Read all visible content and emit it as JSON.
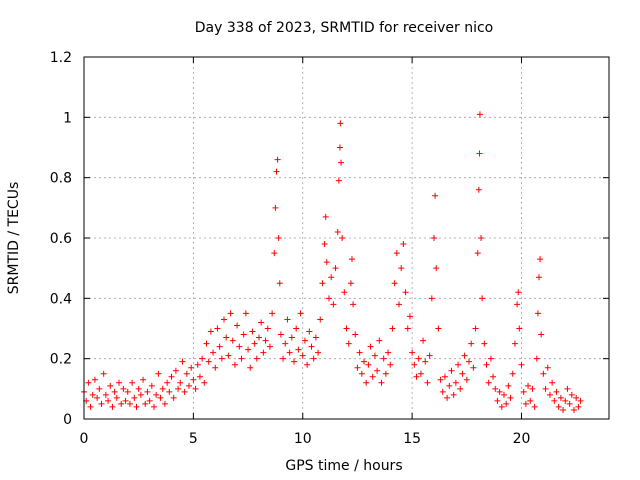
{
  "chart_data": {
    "type": "scatter",
    "title": "Day 338 of 2023, SRMTID for receiver nico",
    "xlabel": "GPS time / hours",
    "ylabel": "SRMTID / TECUs",
    "xlim": [
      0,
      24
    ],
    "ylim": [
      0,
      1.2
    ],
    "x_ticks": [
      0,
      5,
      10,
      15,
      20
    ],
    "y_ticks": [
      0,
      0.2,
      0.4,
      0.6,
      0.8,
      1,
      1.2
    ],
    "x_tick_labels": [
      "0",
      "5",
      "10",
      "15",
      "20"
    ],
    "y_tick_labels": [
      "0",
      "0.2",
      "0.4",
      "0.6",
      "0.8",
      "1",
      "1.2"
    ],
    "grid": true,
    "marker": "+",
    "series": [
      {
        "name": "SRMTID",
        "color": "#ff0000",
        "note": "dense scatter of estimated points from ~0 to ~22.7 h",
        "points": [
          [
            0.0,
            0.09
          ],
          [
            0.1,
            0.06
          ],
          [
            0.2,
            0.12
          ],
          [
            0.3,
            0.04
          ],
          [
            0.4,
            0.08
          ],
          [
            0.5,
            0.13
          ],
          [
            0.6,
            0.07
          ],
          [
            0.7,
            0.1
          ],
          [
            0.8,
            0.05
          ],
          [
            0.9,
            0.15
          ],
          [
            1.0,
            0.08
          ],
          [
            1.1,
            0.06
          ],
          [
            1.2,
            0.11
          ],
          [
            1.3,
            0.04
          ],
          [
            1.4,
            0.09
          ],
          [
            1.5,
            0.07
          ],
          [
            1.6,
            0.12
          ],
          [
            1.7,
            0.05
          ],
          [
            1.8,
            0.1
          ],
          [
            1.9,
            0.06
          ],
          [
            2.0,
            0.09
          ],
          [
            2.1,
            0.05
          ],
          [
            2.2,
            0.12
          ],
          [
            2.3,
            0.07
          ],
          [
            2.4,
            0.04
          ],
          [
            2.5,
            0.1
          ],
          [
            2.6,
            0.08
          ],
          [
            2.7,
            0.13
          ],
          [
            2.8,
            0.05
          ],
          [
            2.9,
            0.09
          ],
          [
            3.0,
            0.06
          ],
          [
            3.1,
            0.11
          ],
          [
            3.2,
            0.04
          ],
          [
            3.3,
            0.08
          ],
          [
            3.4,
            0.15
          ],
          [
            3.5,
            0.07
          ],
          [
            3.6,
            0.1
          ],
          [
            3.7,
            0.05
          ],
          [
            3.8,
            0.12
          ],
          [
            3.9,
            0.09
          ],
          [
            4.0,
            0.14
          ],
          [
            4.1,
            0.07
          ],
          [
            4.2,
            0.16
          ],
          [
            4.3,
            0.1
          ],
          [
            4.4,
            0.12
          ],
          [
            4.5,
            0.19
          ],
          [
            4.6,
            0.09
          ],
          [
            4.7,
            0.15
          ],
          [
            4.8,
            0.11
          ],
          [
            4.9,
            0.17
          ],
          [
            5.0,
            0.13
          ],
          [
            5.1,
            0.1
          ],
          [
            5.2,
            0.18
          ],
          [
            5.3,
            0.14
          ],
          [
            5.4,
            0.2
          ],
          [
            5.5,
            0.12
          ],
          [
            5.6,
            0.25
          ],
          [
            5.7,
            0.19
          ],
          [
            5.8,
            0.29
          ],
          [
            5.9,
            0.22
          ],
          [
            6.0,
            0.17
          ],
          [
            6.1,
            0.3
          ],
          [
            6.2,
            0.24
          ],
          [
            6.3,
            0.2
          ],
          [
            6.4,
            0.33
          ],
          [
            6.5,
            0.27
          ],
          [
            6.6,
            0.21
          ],
          [
            6.7,
            0.35
          ],
          [
            6.8,
            0.26
          ],
          [
            6.9,
            0.18
          ],
          [
            7.0,
            0.31
          ],
          [
            7.1,
            0.24
          ],
          [
            7.2,
            0.2
          ],
          [
            7.3,
            0.28
          ],
          [
            7.4,
            0.35
          ],
          [
            7.5,
            0.23
          ],
          [
            7.6,
            0.17
          ],
          [
            7.7,
            0.29
          ],
          [
            7.8,
            0.25
          ],
          [
            7.9,
            0.2
          ],
          [
            8.0,
            0.27
          ],
          [
            8.1,
            0.32
          ],
          [
            8.2,
            0.22
          ],
          [
            8.3,
            0.26
          ],
          [
            8.4,
            0.3
          ],
          [
            8.5,
            0.24
          ],
          [
            8.6,
            0.35
          ],
          [
            8.7,
            0.55
          ],
          [
            8.75,
            0.7
          ],
          [
            8.8,
            0.82
          ],
          [
            8.85,
            0.86
          ],
          [
            8.9,
            0.6
          ],
          [
            8.95,
            0.45
          ],
          [
            9.0,
            0.28
          ],
          [
            9.1,
            0.2
          ],
          [
            9.2,
            0.25
          ],
          [
            9.3,
            0.33
          ],
          [
            9.4,
            0.22
          ],
          [
            9.5,
            0.27
          ],
          [
            9.6,
            0.19
          ],
          [
            9.7,
            0.3
          ],
          [
            9.8,
            0.23
          ],
          [
            9.9,
            0.35
          ],
          [
            10.0,
            0.21
          ],
          [
            10.1,
            0.26
          ],
          [
            10.2,
            0.18
          ],
          [
            10.3,
            0.29
          ],
          [
            10.4,
            0.24
          ],
          [
            10.5,
            0.2
          ],
          [
            10.6,
            0.27
          ],
          [
            10.7,
            0.22
          ],
          [
            10.8,
            0.33
          ],
          [
            10.9,
            0.45
          ],
          [
            11.0,
            0.58
          ],
          [
            11.05,
            0.67
          ],
          [
            11.1,
            0.52
          ],
          [
            11.2,
            0.4
          ],
          [
            11.3,
            0.47
          ],
          [
            11.4,
            0.38
          ],
          [
            11.5,
            0.5
          ],
          [
            11.6,
            0.62
          ],
          [
            11.65,
            0.79
          ],
          [
            11.7,
            0.9
          ],
          [
            11.72,
            0.98
          ],
          [
            11.75,
            0.85
          ],
          [
            11.8,
            0.6
          ],
          [
            11.9,
            0.42
          ],
          [
            12.0,
            0.3
          ],
          [
            12.1,
            0.25
          ],
          [
            12.2,
            0.45
          ],
          [
            12.25,
            0.53
          ],
          [
            12.3,
            0.38
          ],
          [
            12.4,
            0.28
          ],
          [
            12.5,
            0.17
          ],
          [
            12.6,
            0.22
          ],
          [
            12.7,
            0.15
          ],
          [
            12.8,
            0.19
          ],
          [
            12.9,
            0.12
          ],
          [
            13.0,
            0.18
          ],
          [
            13.1,
            0.24
          ],
          [
            13.2,
            0.14
          ],
          [
            13.3,
            0.21
          ],
          [
            13.4,
            0.16
          ],
          [
            13.5,
            0.26
          ],
          [
            13.6,
            0.12
          ],
          [
            13.7,
            0.2
          ],
          [
            13.8,
            0.15
          ],
          [
            13.9,
            0.22
          ],
          [
            14.0,
            0.18
          ],
          [
            14.1,
            0.3
          ],
          [
            14.2,
            0.45
          ],
          [
            14.3,
            0.55
          ],
          [
            14.4,
            0.38
          ],
          [
            14.5,
            0.5
          ],
          [
            14.6,
            0.58
          ],
          [
            14.7,
            0.42
          ],
          [
            14.8,
            0.3
          ],
          [
            14.9,
            0.34
          ],
          [
            15.0,
            0.22
          ],
          [
            15.1,
            0.18
          ],
          [
            15.2,
            0.14
          ],
          [
            15.3,
            0.2
          ],
          [
            15.4,
            0.15
          ],
          [
            15.5,
            0.26
          ],
          [
            15.6,
            0.19
          ],
          [
            15.7,
            0.12
          ],
          [
            15.8,
            0.21
          ],
          [
            15.9,
            0.4
          ],
          [
            16.0,
            0.6
          ],
          [
            16.05,
            0.74
          ],
          [
            16.1,
            0.5
          ],
          [
            16.2,
            0.3
          ],
          [
            16.3,
            0.13
          ],
          [
            16.4,
            0.09
          ],
          [
            16.5,
            0.14
          ],
          [
            16.6,
            0.07
          ],
          [
            16.7,
            0.11
          ],
          [
            16.8,
            0.16
          ],
          [
            16.9,
            0.08
          ],
          [
            17.0,
            0.12
          ],
          [
            17.1,
            0.18
          ],
          [
            17.2,
            0.1
          ],
          [
            17.3,
            0.15
          ],
          [
            17.4,
            0.21
          ],
          [
            17.5,
            0.13
          ],
          [
            17.6,
            0.19
          ],
          [
            17.7,
            0.25
          ],
          [
            17.8,
            0.17
          ],
          [
            17.9,
            0.3
          ],
          [
            18.0,
            0.55
          ],
          [
            18.05,
            0.76
          ],
          [
            18.08,
            0.88
          ],
          [
            18.1,
            1.01
          ],
          [
            18.15,
            0.6
          ],
          [
            18.2,
            0.4
          ],
          [
            18.3,
            0.25
          ],
          [
            18.4,
            0.18
          ],
          [
            18.5,
            0.12
          ],
          [
            18.6,
            0.2
          ],
          [
            18.7,
            0.14
          ],
          [
            18.8,
            0.1
          ],
          [
            18.9,
            0.06
          ],
          [
            19.0,
            0.09
          ],
          [
            19.1,
            0.04
          ],
          [
            19.2,
            0.08
          ],
          [
            19.3,
            0.05
          ],
          [
            19.4,
            0.11
          ],
          [
            19.5,
            0.07
          ],
          [
            19.6,
            0.15
          ],
          [
            19.7,
            0.25
          ],
          [
            19.8,
            0.38
          ],
          [
            19.85,
            0.42
          ],
          [
            19.9,
            0.3
          ],
          [
            20.0,
            0.18
          ],
          [
            20.1,
            0.09
          ],
          [
            20.2,
            0.05
          ],
          [
            20.3,
            0.11
          ],
          [
            20.4,
            0.06
          ],
          [
            20.5,
            0.1
          ],
          [
            20.6,
            0.04
          ],
          [
            20.7,
            0.2
          ],
          [
            20.75,
            0.35
          ],
          [
            20.8,
            0.47
          ],
          [
            20.85,
            0.53
          ],
          [
            20.9,
            0.28
          ],
          [
            21.0,
            0.15
          ],
          [
            21.1,
            0.1
          ],
          [
            21.2,
            0.17
          ],
          [
            21.3,
            0.08
          ],
          [
            21.4,
            0.12
          ],
          [
            21.5,
            0.06
          ],
          [
            21.6,
            0.09
          ],
          [
            21.7,
            0.04
          ],
          [
            21.8,
            0.07
          ],
          [
            21.9,
            0.03
          ],
          [
            22.0,
            0.06
          ],
          [
            22.1,
            0.1
          ],
          [
            22.2,
            0.05
          ],
          [
            22.3,
            0.08
          ],
          [
            22.4,
            0.03
          ],
          [
            22.5,
            0.07
          ],
          [
            22.6,
            0.04
          ],
          [
            22.7,
            0.06
          ]
        ]
      }
    ]
  }
}
